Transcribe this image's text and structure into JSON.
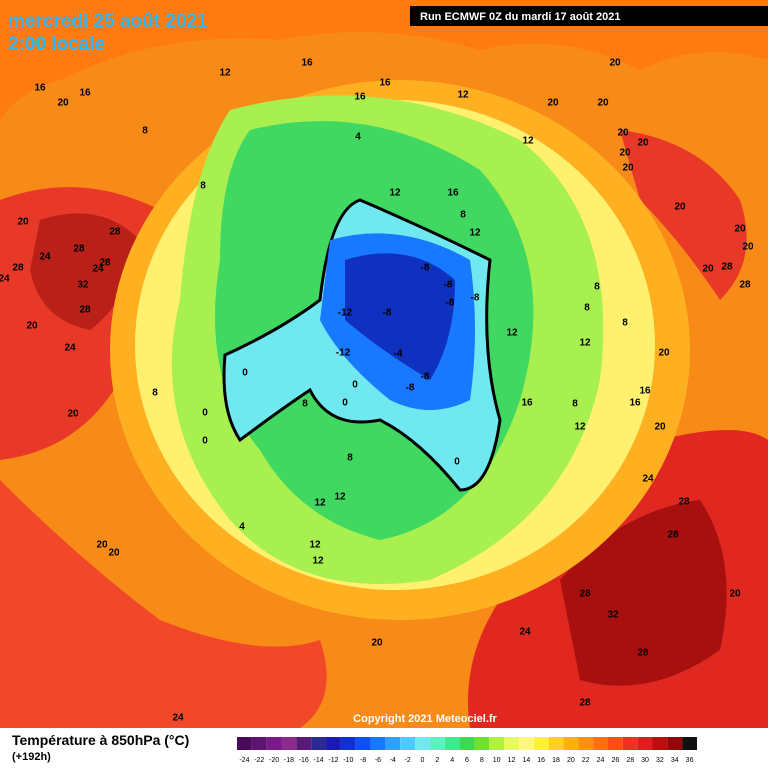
{
  "header": {
    "date": "mercredi 25 août 2021",
    "time": "2:00 locale",
    "run": "Run ECMWF 0Z du mardi 17 août 2021"
  },
  "copyright": "Copyright 2021 Meteociel.fr",
  "contour_labels": [
    "16",
    "16",
    "20",
    "12",
    "16",
    "16",
    "16",
    "12",
    "20",
    "20",
    "20",
    "20",
    "20",
    "20",
    "20",
    "20",
    "20",
    "20",
    "20",
    "28",
    "28",
    "12",
    "12",
    "16",
    "8",
    "12",
    "4",
    "8",
    "8",
    "20",
    "28",
    "28",
    "24",
    "28",
    "24",
    "28",
    "24",
    "32",
    "28",
    "20",
    "24",
    "20",
    "-8",
    "-8",
    "-8",
    "-8",
    "-12",
    "-8",
    "-12",
    "-4",
    "-8",
    "-8",
    "0",
    "8",
    "0",
    "0",
    "0",
    "8",
    "0",
    "8",
    "0",
    "12",
    "8",
    "8",
    "8",
    "12",
    "20",
    "16",
    "8",
    "12",
    "16",
    "16",
    "20",
    "24",
    "28",
    "28",
    "12",
    "12",
    "4",
    "12",
    "12",
    "20",
    "20",
    "28",
    "32",
    "20",
    "24",
    "28",
    "20",
    "28",
    "24"
  ],
  "legend": {
    "title": "Température à 850hPa (°C)",
    "lead": "(+192h)",
    "ticks": [
      -24,
      -22,
      -20,
      -18,
      -16,
      -14,
      -12,
      -10,
      -8,
      -6,
      -4,
      -2,
      0,
      2,
      4,
      6,
      8,
      10,
      12,
      14,
      16,
      18,
      20,
      22,
      24,
      26,
      28,
      30,
      32,
      34,
      36
    ],
    "colors": [
      "#4a0a5a",
      "#5c1470",
      "#7a1a8a",
      "#8c2a8c",
      "#5a1a78",
      "#2a2a90",
      "#1a1ab0",
      "#1030d0",
      "#1050f0",
      "#1878ff",
      "#30a0ff",
      "#50c8ff",
      "#70e8f0",
      "#60f0c0",
      "#40e890",
      "#40d850",
      "#70e030",
      "#b0f040",
      "#e8f860",
      "#fff880",
      "#fff040",
      "#ffd020",
      "#ffb010",
      "#ff9010",
      "#ff7010",
      "#ff5010",
      "#f03020",
      "#d82020",
      "#b81010",
      "#900808",
      "#101010"
    ]
  }
}
